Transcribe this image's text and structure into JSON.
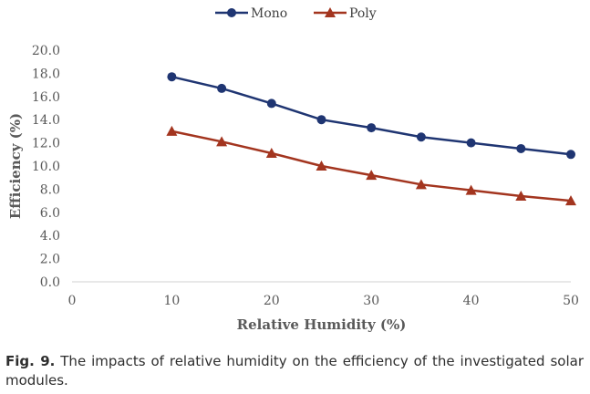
{
  "chart_data": {
    "type": "line",
    "xlabel": "Relative Humidity (%)",
    "ylabel": "Efficiency (%)",
    "xlim": [
      0,
      50
    ],
    "ylim": [
      0,
      20
    ],
    "xticks": [
      "0",
      "10",
      "20",
      "30",
      "40",
      "50"
    ],
    "yticks": [
      "0.0",
      "2.0",
      "4.0",
      "6.0",
      "8.0",
      "10.0",
      "12.0",
      "14.0",
      "16.0",
      "18.0",
      "20.0"
    ],
    "grid": false,
    "legend_position": "top-center",
    "x": [
      10,
      15,
      20,
      25,
      30,
      35,
      40,
      45,
      50
    ],
    "series": [
      {
        "name": "Mono",
        "color": "#1f3572",
        "marker": "circle",
        "values": [
          17.7,
          16.7,
          15.4,
          14.0,
          13.3,
          12.5,
          12.0,
          11.5,
          11.0
        ]
      },
      {
        "name": "Poly",
        "color": "#a3351f",
        "marker": "triangle",
        "values": [
          13.0,
          12.1,
          11.1,
          10.0,
          9.2,
          8.4,
          7.9,
          7.4,
          7.0
        ]
      }
    ]
  },
  "caption": {
    "label": "Fig. 9.",
    "text": " The impacts of relative humidity on the efficiency of the investigated solar modules."
  }
}
